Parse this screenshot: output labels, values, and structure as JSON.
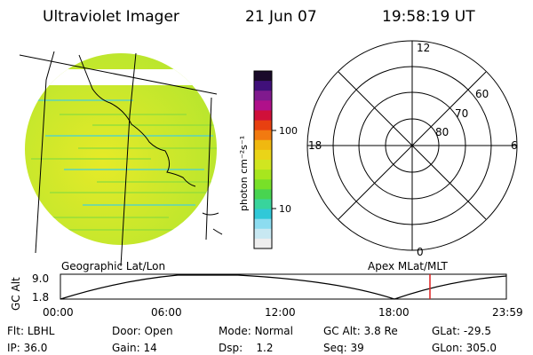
{
  "header": {
    "instrument": "Ultraviolet Imager",
    "date": "21 Jun 07",
    "time": "19:58:19 UT"
  },
  "colorbar": {
    "unit_label": "photon cm⁻²s⁻¹",
    "ticks": [
      {
        "label": "100",
        "value": 100
      },
      {
        "label": "10",
        "value": 10
      }
    ],
    "colors_top_to_bottom": [
      "#1a0a2a",
      "#40107a",
      "#801a8e",
      "#b0108a",
      "#d0103a",
      "#e84010",
      "#f27a10",
      "#f0b810",
      "#ead418",
      "#d0e620",
      "#a8e61e",
      "#78e028",
      "#48d450",
      "#38d49c",
      "#30c8d8",
      "#8cdcf0",
      "#c8e8f2",
      "#eeeeee"
    ]
  },
  "polar_grid": {
    "hour_labels": [
      "12",
      "18",
      "6",
      "0"
    ],
    "latitude_labels": [
      "60",
      "70",
      "80"
    ]
  },
  "image_colors": {
    "base": "#b6e62e",
    "warm": "#e6ea28",
    "cyan_stripe": "#62d4b4"
  },
  "timeline": {
    "axis_label": "GC Alt",
    "y_ticks": [
      "9.0",
      "1.8"
    ],
    "left_caption": "Geographic Lat/Lon",
    "right_caption": "Apex MLat/MLT",
    "time_ticks": [
      "00:00",
      "06:00",
      "12:00",
      "18:00",
      "23:59"
    ],
    "current_time_color": "#dd2020"
  },
  "status": {
    "row1": [
      {
        "key": "Flt:",
        "value": "LBHL"
      },
      {
        "key": "Door:",
        "value": "Open"
      },
      {
        "key": "Mode:",
        "value": "Normal"
      },
      {
        "key": "GC Alt:",
        "value": "3.8 Re"
      },
      {
        "key": "GLat:",
        "value": "-29.5"
      }
    ],
    "row2": [
      {
        "key": "IP:",
        "value": "36.0"
      },
      {
        "key": "Gain:",
        "value": "14"
      },
      {
        "key": "Dsp:",
        "value": "1.2"
      },
      {
        "key": "Seq:",
        "value": "39"
      },
      {
        "key": "GLon:",
        "value": "305.0"
      }
    ]
  }
}
